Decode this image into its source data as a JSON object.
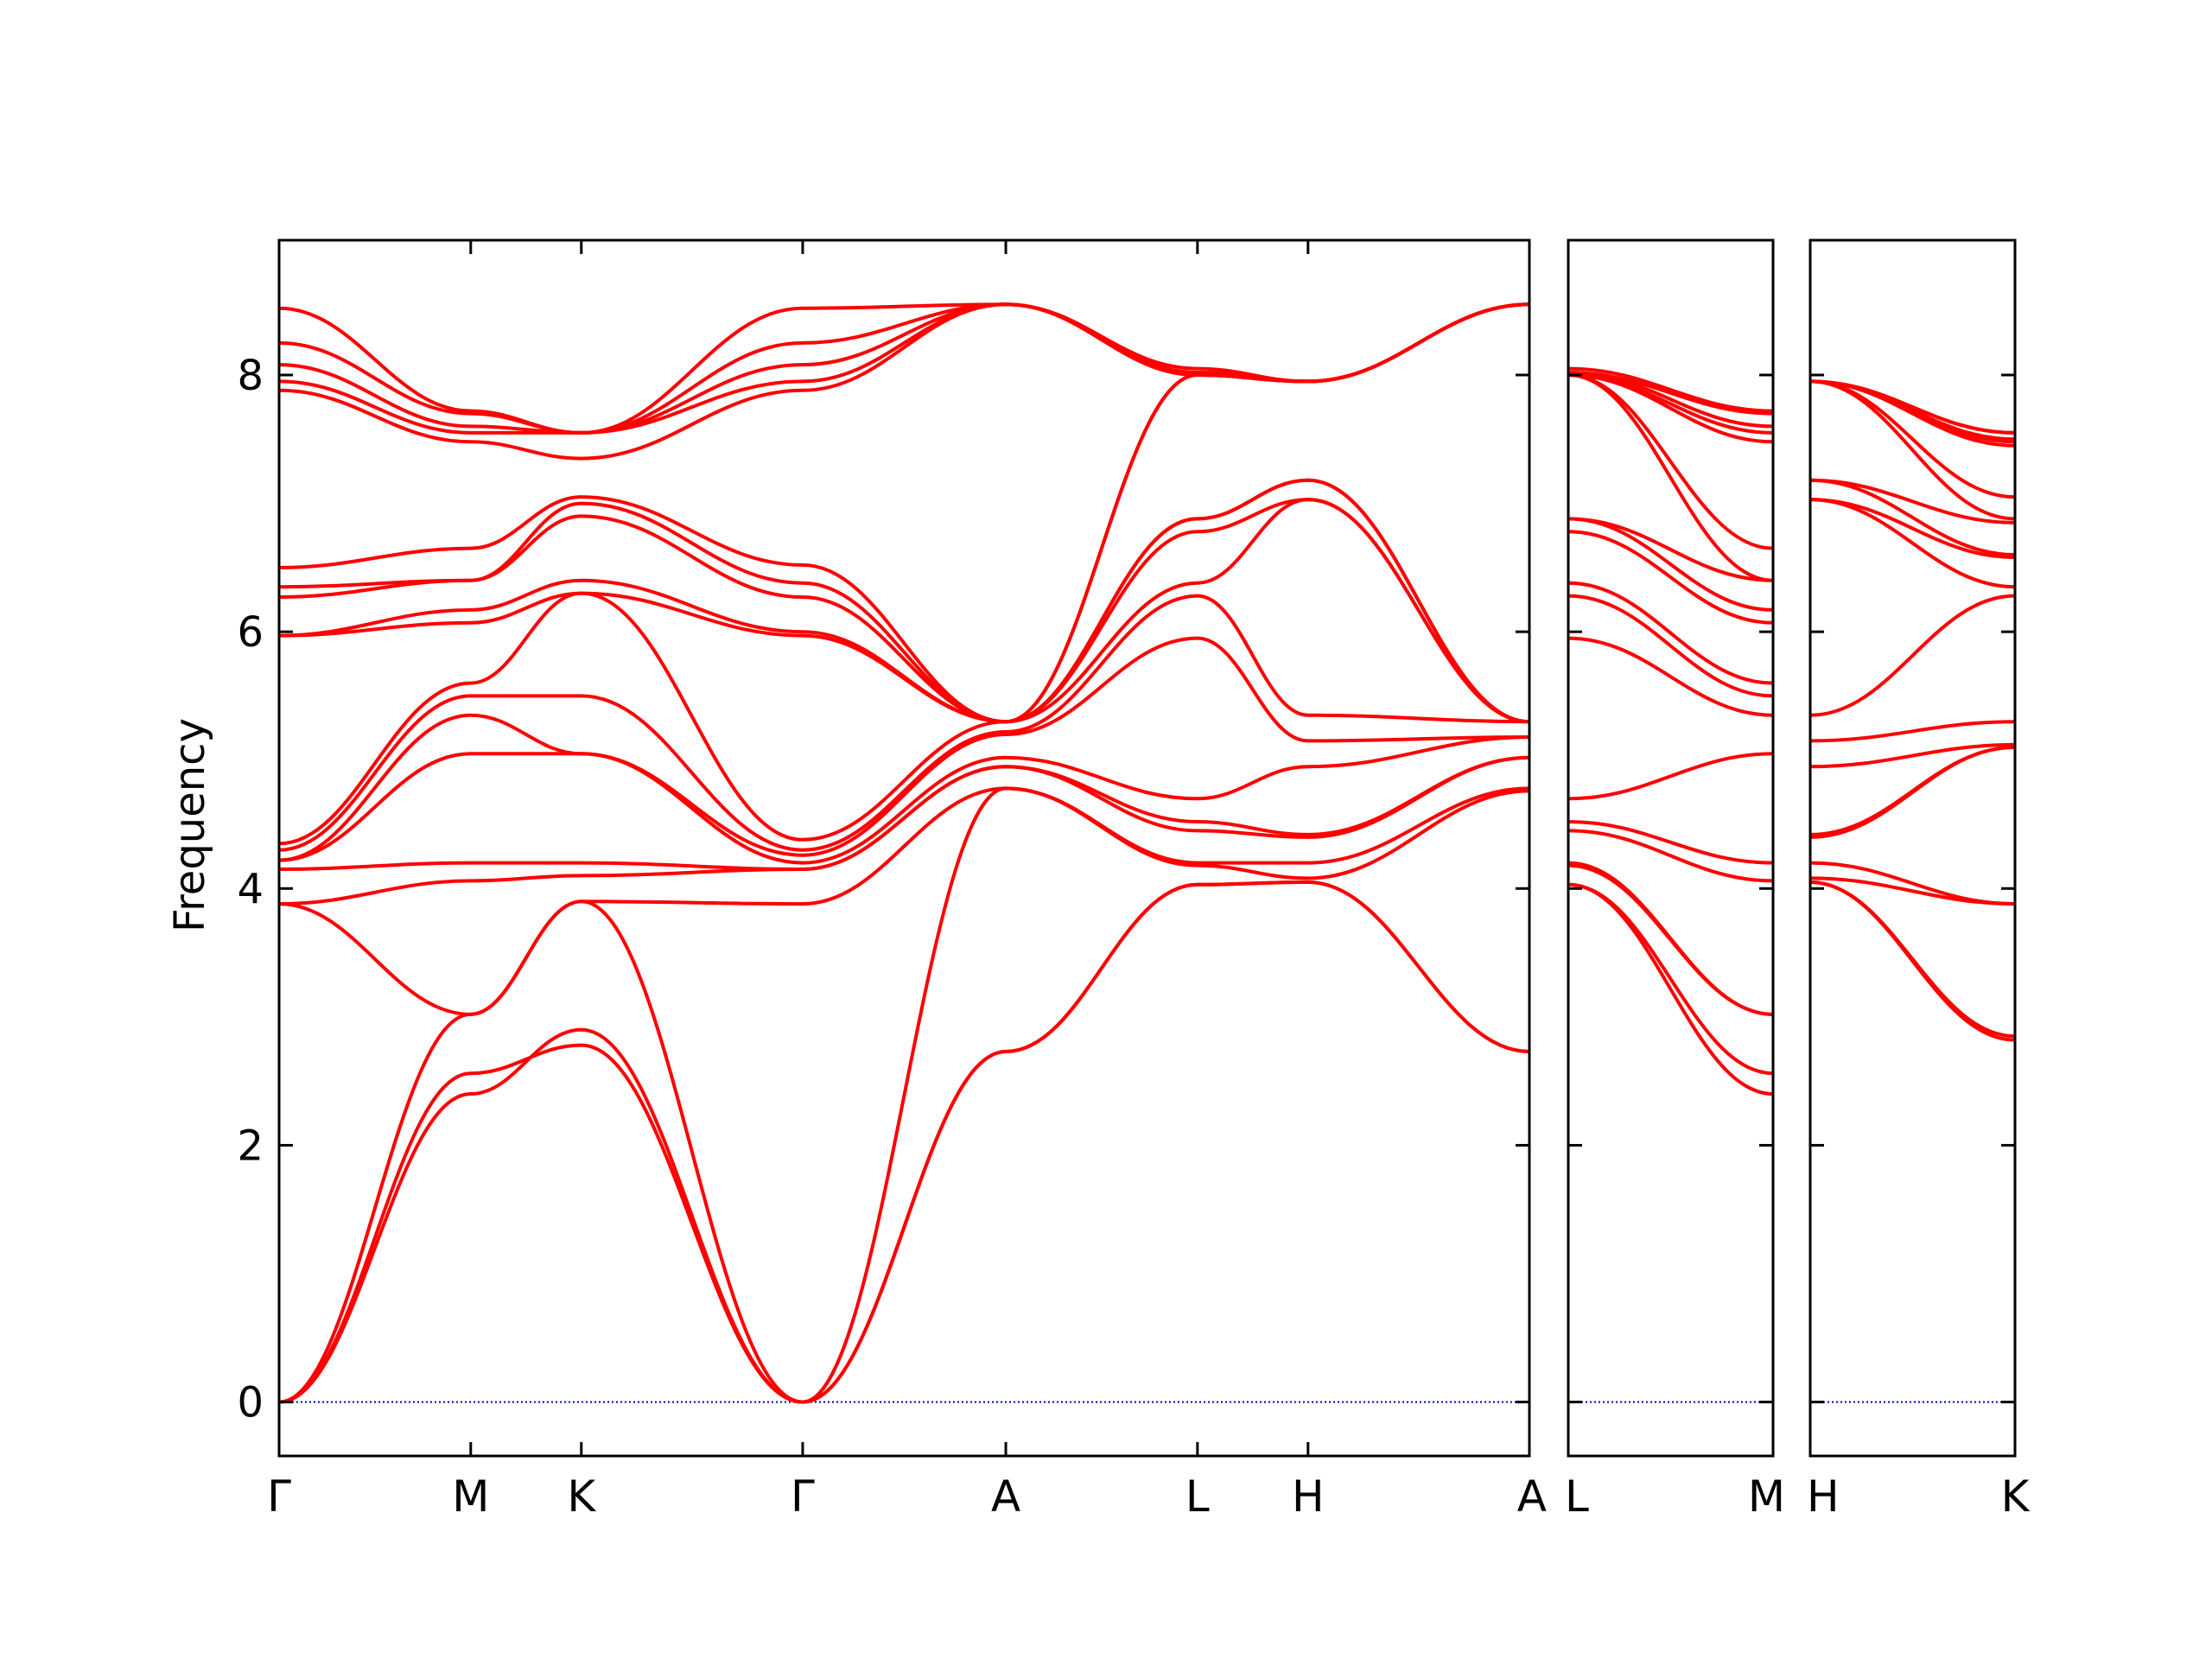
{
  "chart_data": {
    "type": "line",
    "title": "",
    "xlabel": "",
    "ylabel": "Frequency",
    "ylim": [
      -0.42,
      9.05
    ],
    "yticks": [
      0,
      2,
      4,
      6,
      8
    ],
    "grid": false,
    "legend": "none",
    "line_color": "#ff0000",
    "zero_line_color": "#0000cc",
    "panels": [
      {
        "path": [
          "Γ",
          "M",
          "K",
          "Γ",
          "A",
          "L",
          "H",
          "A"
        ],
        "segment_lengths": [
          1.0,
          0.577,
          1.155,
          1.06,
          1.0,
          0.577,
          1.155
        ],
        "series": [
          {
            "y": [
              0,
              2.4,
              2.9,
              0,
              2.73,
              4.03,
              4.05,
              2.73
            ]
          },
          {
            "y": [
              0,
              2.56,
              2.78,
              0,
              2.73,
              4.03,
              4.05,
              2.73
            ]
          },
          {
            "y": [
              0,
              3.02,
              3.9,
              0,
              4.78,
              4.18,
              4.08,
              4.76
            ]
          },
          {
            "y": [
              3.88,
              3.02,
              3.9,
              3.88,
              4.78,
              4.2,
              4.2,
              4.78
            ]
          },
          {
            "y": [
              3.88,
              4.06,
              4.1,
              4.15,
              4.95,
              4.45,
              4.4,
              5.02
            ]
          },
          {
            "y": [
              4.15,
              4.2,
              4.2,
              4.15,
              4.95,
              4.52,
              4.42,
              5.02
            ]
          },
          {
            "y": [
              4.22,
              5.05,
              5.05,
              4.2,
              5.02,
              4.7,
              4.95,
              5.18
            ]
          },
          {
            "y": [
              4.22,
              5.35,
              5.05,
              4.26,
              5.2,
              5.95,
              5.15,
              5.18
            ]
          },
          {
            "y": [
              4.3,
              5.5,
              5.5,
              4.3,
              5.22,
              6.28,
              5.35,
              5.3
            ]
          },
          {
            "y": [
              4.35,
              5.6,
              6.3,
              4.38,
              5.3,
              6.38,
              7.03,
              5.3
            ]
          },
          {
            "y": [
              5.97,
              6.07,
              6.3,
              5.97,
              5.3,
              6.78,
              7.03,
              5.3
            ]
          },
          {
            "y": [
              5.97,
              6.17,
              6.4,
              6.0,
              5.3,
              6.88,
              7.18,
              5.3
            ]
          },
          {
            "y": [
              6.27,
              6.4,
              6.9,
              6.27,
              5.3,
              6.88,
              7.18,
              5.3
            ]
          },
          {
            "y": [
              6.35,
              6.4,
              7.0,
              6.38,
              5.3,
              8.0,
              7.95,
              8.55
            ]
          },
          {
            "y": [
              6.5,
              6.65,
              7.05,
              6.52,
              5.3,
              8.0,
              7.95,
              8.55
            ]
          },
          {
            "y": [
              7.88,
              7.48,
              7.35,
              7.88,
              8.55,
              8.0,
              7.95,
              8.55
            ]
          },
          {
            "y": [
              7.95,
              7.55,
              7.55,
              7.95,
              8.55,
              8.0,
              7.95,
              8.55
            ]
          },
          {
            "y": [
              8.08,
              7.6,
              7.55,
              8.08,
              8.55,
              8.02,
              7.95,
              8.55
            ]
          },
          {
            "y": [
              8.25,
              7.7,
              7.55,
              8.25,
              8.55,
              8.02,
              7.95,
              8.55
            ]
          },
          {
            "y": [
              8.52,
              7.72,
              7.55,
              8.52,
              8.55,
              8.05,
              7.95,
              8.55
            ]
          }
        ]
      },
      {
        "path": [
          "L",
          "M"
        ],
        "segment_lengths": [
          1.0
        ],
        "series": [
          {
            "y": [
              4.03,
              2.4
            ]
          },
          {
            "y": [
              4.03,
              2.56
            ]
          },
          {
            "y": [
              4.18,
              3.02
            ]
          },
          {
            "y": [
              4.2,
              3.02
            ]
          },
          {
            "y": [
              4.45,
              4.06
            ]
          },
          {
            "y": [
              4.52,
              4.2
            ]
          },
          {
            "y": [
              4.7,
              5.05
            ]
          },
          {
            "y": [
              5.95,
              5.35
            ]
          },
          {
            "y": [
              6.28,
              5.5
            ]
          },
          {
            "y": [
              6.38,
              5.6
            ]
          },
          {
            "y": [
              6.78,
              6.07
            ]
          },
          {
            "y": [
              6.88,
              6.17
            ]
          },
          {
            "y": [
              6.88,
              6.4
            ]
          },
          {
            "y": [
              8.0,
              6.4
            ]
          },
          {
            "y": [
              8.0,
              6.65
            ]
          },
          {
            "y": [
              8.0,
              7.48
            ]
          },
          {
            "y": [
              8.0,
              7.55
            ]
          },
          {
            "y": [
              8.02,
              7.6
            ]
          },
          {
            "y": [
              8.02,
              7.7
            ]
          },
          {
            "y": [
              8.05,
              7.72
            ]
          }
        ]
      },
      {
        "path": [
          "H",
          "K"
        ],
        "segment_lengths": [
          1.0
        ],
        "series": [
          {
            "y": [
              4.05,
              2.82
            ]
          },
          {
            "y": [
              4.05,
              2.85
            ]
          },
          {
            "y": [
              4.08,
              3.88
            ]
          },
          {
            "y": [
              4.2,
              3.88
            ]
          },
          {
            "y": [
              4.4,
              5.1
            ]
          },
          {
            "y": [
              4.42,
              5.1
            ]
          },
          {
            "y": [
              4.95,
              5.12
            ]
          },
          {
            "y": [
              5.15,
              5.3
            ]
          },
          {
            "y": [
              5.35,
              6.28
            ]
          },
          {
            "y": [
              7.03,
              6.35
            ]
          },
          {
            "y": [
              7.03,
              6.58
            ]
          },
          {
            "y": [
              7.18,
              6.6
            ]
          },
          {
            "y": [
              7.18,
              6.85
            ]
          },
          {
            "y": [
              7.95,
              6.88
            ]
          },
          {
            "y": [
              7.95,
              7.05
            ]
          },
          {
            "y": [
              7.95,
              7.45
            ]
          },
          {
            "y": [
              7.95,
              7.48
            ]
          },
          {
            "y": [
              7.95,
              7.5
            ]
          },
          {
            "y": [
              7.95,
              7.55
            ]
          },
          {
            "y": [
              7.95,
              7.55
            ]
          }
        ]
      }
    ]
  }
}
